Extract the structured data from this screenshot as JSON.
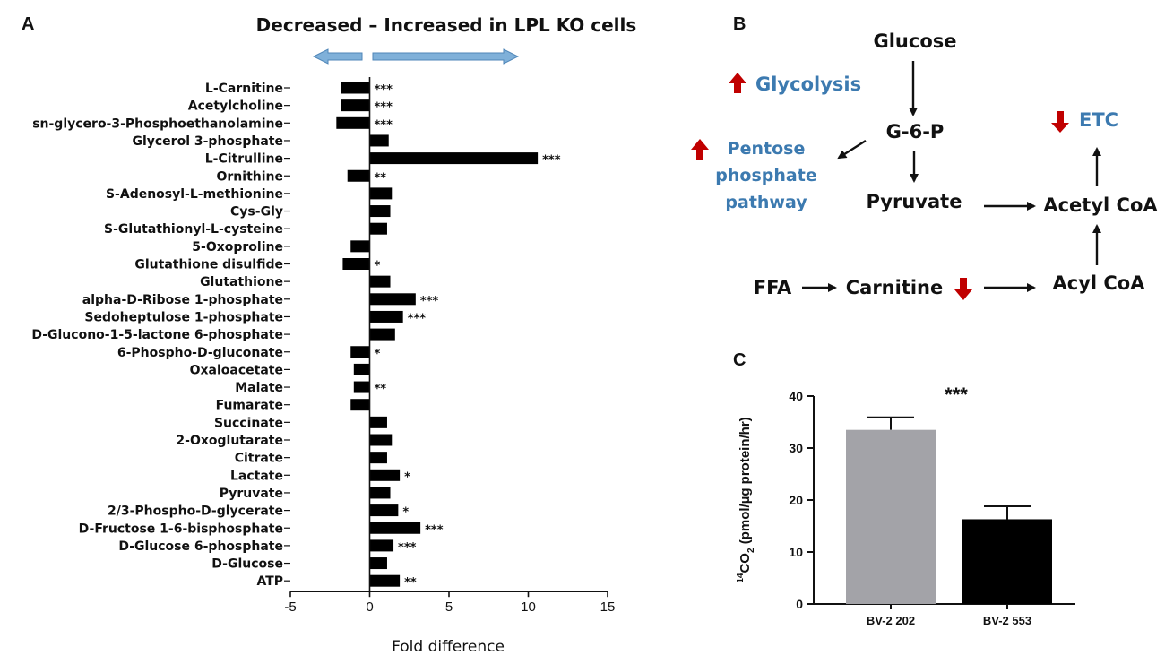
{
  "panels": {
    "a": "A",
    "b": "B",
    "c": "C"
  },
  "chart_data": [
    {
      "type": "bar",
      "orientation": "horizontal",
      "title": "Decreased – Increased in LPL KO cells",
      "xlabel": "Fold difference",
      "xlim": [
        -5,
        15
      ],
      "xticks": [
        "-5",
        "0",
        "5",
        "10",
        "15"
      ],
      "categories": [
        "L-Carnitine",
        "Acetylcholine",
        "sn-glycero-3-Phosphoethanolamine",
        "Glycerol 3-phosphate",
        "L-Citrulline",
        "Ornithine",
        "S-Adenosyl-L-methionine",
        "Cys-Gly",
        "S-Glutathionyl-L-cysteine",
        "5-Oxoproline",
        "Glutathione disulfide",
        "Glutathione",
        "alpha-D-Ribose 1-phosphate",
        "Sedoheptulose 1-phosphate",
        "D-Glucono-1-5-lactone 6-phosphate",
        "6-Phospho-D-gluconate",
        "Oxaloacetate",
        "Malate",
        "Fumarate",
        "Succinate",
        "2-Oxoglutarate",
        "Citrate",
        "Lactate",
        "Pyruvate",
        "2/3-Phospho-D-glycerate",
        "D-Fructose 1-6-bisphosphate",
        "D-Glucose 6-phosphate",
        "D-Glucose",
        "ATP"
      ],
      "values": [
        -1.8,
        -1.8,
        -2.1,
        1.2,
        10.6,
        -1.4,
        1.4,
        1.3,
        1.1,
        -1.2,
        -1.7,
        1.3,
        2.9,
        2.1,
        1.6,
        -1.2,
        -1.0,
        -1.0,
        -1.2,
        1.1,
        1.4,
        1.1,
        1.9,
        1.3,
        1.8,
        3.2,
        1.5,
        1.1,
        1.9
      ],
      "significance": [
        "***",
        "***",
        "***",
        "",
        "***",
        "**",
        "",
        "",
        "",
        "",
        "*",
        "",
        "***",
        "***",
        "",
        "*",
        "",
        "**",
        "",
        "",
        "",
        "",
        "*",
        "",
        "*",
        "***",
        "***",
        "",
        "**"
      ]
    },
    {
      "type": "bar",
      "title": "",
      "ylabel": "14CO2 (pmol/µg protein/hr)",
      "ylabel_parts": {
        "sup": "14",
        "main": "CO",
        "sub": "2",
        "rest": " (pmol/µg protein/hr)"
      },
      "ylim": [
        0,
        40
      ],
      "yticks": [
        "0",
        "10",
        "20",
        "30",
        "40"
      ],
      "categories": [
        "BV-2 202",
        "BV-2 553"
      ],
      "values": [
        33.5,
        16.3
      ],
      "errors": [
        2.4,
        2.5
      ],
      "colors": [
        "#a3a3a8",
        "#000000"
      ],
      "significance": "***"
    }
  ],
  "diagram": {
    "glucose": "Glucose",
    "g6p": "G-6-P",
    "pyruvate": "Pyruvate",
    "acetyl_coa": "Acetyl CoA",
    "acyl_coa": "Acyl CoA",
    "ffa": "FFA",
    "carnitine": "Carnitine",
    "glycolysis": "Glycolysis",
    "pentose": [
      "Pentose",
      "phosphate",
      "pathway"
    ],
    "etc": "ETC",
    "colors": {
      "up_arrow": "#c00000",
      "pathway_text": "#3c7ab0",
      "direction_arrow": "#7fb0d9"
    }
  }
}
